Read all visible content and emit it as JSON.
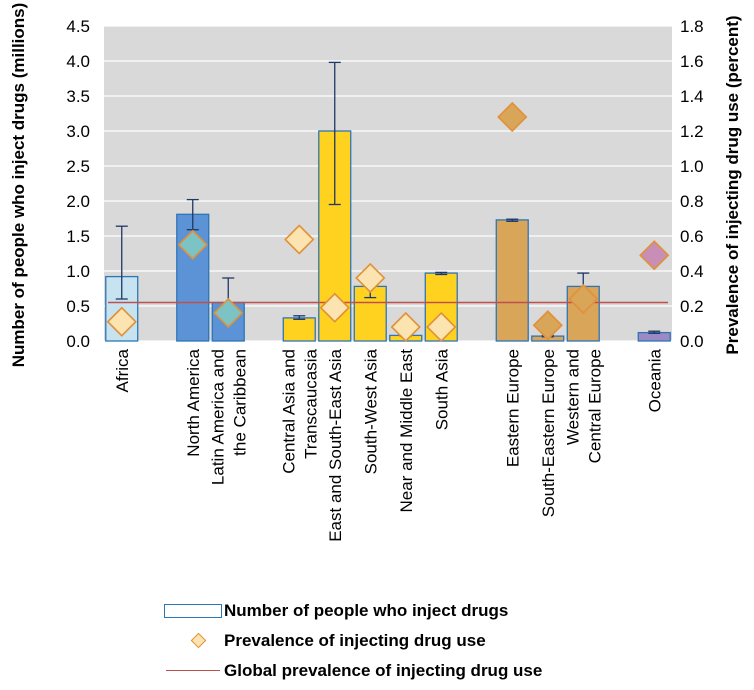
{
  "chart_data": {
    "type": "bar",
    "categories": [
      [
        "Africa"
      ],
      [
        "North America"
      ],
      [
        "Latin America and",
        "the Caribbean"
      ],
      [
        "Central Asia and",
        "Transcaucasia"
      ],
      [
        "East and South-East Asia"
      ],
      [
        "South-West Asia"
      ],
      [
        "Near and Middle East"
      ],
      [
        "South Asia"
      ],
      [
        "Eastern Europe"
      ],
      [
        "South-Eastern Europe"
      ],
      [
        "Western and",
        "Central Europe"
      ],
      [
        "Oceania"
      ]
    ],
    "series": [
      {
        "name": "Number of people who inject drugs",
        "axis": "left",
        "values": [
          0.92,
          1.81,
          0.55,
          0.33,
          3.0,
          0.78,
          0.08,
          0.97,
          1.73,
          0.07,
          0.78,
          0.12
        ],
        "error_low": [
          0.6,
          1.59,
          0.3,
          0.31,
          1.95,
          0.62,
          0.07,
          0.95,
          1.71,
          0.06,
          0.62,
          0.11
        ],
        "error_high": [
          1.64,
          2.02,
          0.9,
          0.36,
          3.98,
          0.8,
          0.1,
          0.98,
          1.74,
          0.08,
          0.97,
          0.14
        ]
      },
      {
        "name": "Prevalence of injecting drug use",
        "axis": "right",
        "values": [
          0.11,
          0.55,
          0.16,
          0.58,
          0.19,
          0.36,
          0.08,
          0.08,
          1.28,
          0.09,
          0.24,
          0.49
        ]
      },
      {
        "name": "Global prevalence of injecting drug use",
        "axis": "right",
        "value": 0.22
      }
    ],
    "bar_colors": [
      "#c6e3ef",
      "#5b93d6",
      "#5b93d6",
      "#ffd21f",
      "#ffd21f",
      "#ffd21f",
      "#ffd21f",
      "#ffd21f",
      "#d9a559",
      "#d9a559",
      "#d9a559",
      "#9b8ac4"
    ],
    "diamond_colors": [
      "#fbe4b0",
      "#7cc3c6",
      "#7cc3c6",
      "#fbe4b0",
      "#fbe4b0",
      "#fbe4b0",
      "#fbe4b0",
      "#fbe4b0",
      "#d9a559",
      "#d9a559",
      "#d9a559",
      "#c98eb5"
    ],
    "bar_border_color": "#2e75b6",
    "line_color": "#c0504d",
    "plot_background": "#d9d9d9",
    "ylabel": "Number of people who inject drugs (millions)",
    "y2label": "Prevalence of injecting drug use (percent)",
    "ylim": [
      0,
      4.5
    ],
    "y2lim": [
      0,
      1.8
    ],
    "yticks": [
      "0.0",
      "0.5",
      "1.0",
      "1.5",
      "2.0",
      "2.5",
      "3.0",
      "3.5",
      "4.0",
      "4.5"
    ],
    "y2ticks": [
      "0.0",
      "0.2",
      "0.4",
      "0.6",
      "0.8",
      "1.0",
      "1.2",
      "1.4",
      "1.6",
      "1.8"
    ],
    "grid": true,
    "legend_position": "bottom",
    "legend": {
      "bar_label": "Number of people who inject drugs",
      "diamond_label": "Prevalence of injecting drug use",
      "line_label": "Global prevalence of injecting drug use"
    }
  }
}
